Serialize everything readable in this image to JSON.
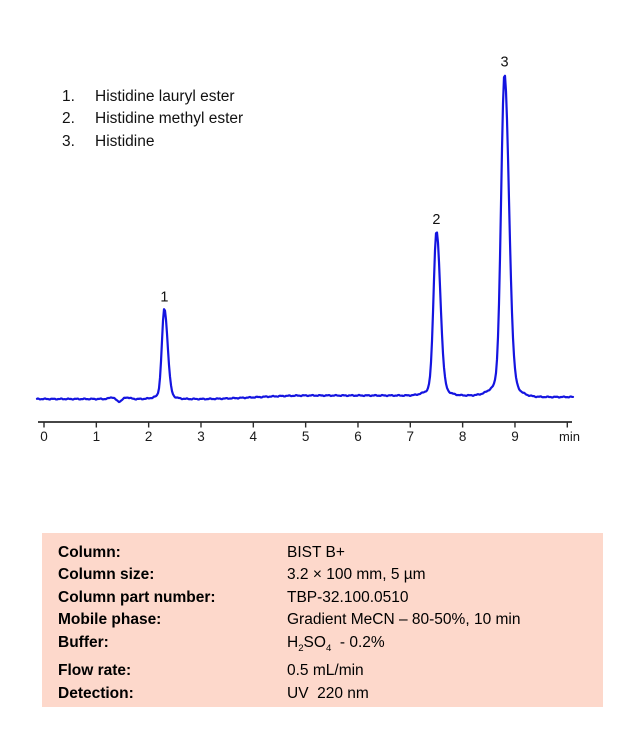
{
  "legend": {
    "items": [
      {
        "number": "1.",
        "label": "Histidine lauryl ester"
      },
      {
        "number": "2.",
        "label": "Histidine methyl ester"
      },
      {
        "number": "3.",
        "label": "Histidine"
      }
    ]
  },
  "chart_data": {
    "type": "line",
    "description": "HPLC chromatogram, UV detector signal vs time",
    "x_axis": {
      "label": "min",
      "tick_labels": [
        "0",
        "1",
        "2",
        "3",
        "4",
        "5",
        "6",
        "7",
        "8",
        "9"
      ],
      "xlim": [
        0,
        10.1
      ],
      "unlabeled_end_tick_at": 10
    },
    "y_axis": {
      "visible": false
    },
    "peaks": [
      {
        "number": "1",
        "compound": "Histidine lauryl ester",
        "retention_time_min": 2.3,
        "relative_height": 0.28,
        "width_sigma_min": 0.055
      },
      {
        "number": "2",
        "compound": "Histidine methyl ester",
        "retention_time_min": 7.5,
        "relative_height": 0.51,
        "width_sigma_min": 0.065
      },
      {
        "number": "3",
        "compound": "Histidine",
        "retention_time_min": 8.8,
        "relative_height": 1.0,
        "width_sigma_min": 0.075
      }
    ],
    "baseline": {
      "noise_blip_min": 1.4,
      "drift": "slight rise between 3.5 and 7 min"
    },
    "trace_color": "#1414e0",
    "axis_color": "#2b2b2b",
    "tick_label_color": "#1a1a1a",
    "peak_label_color": "#111111"
  },
  "params": {
    "background_color": "#fdd8cb",
    "rows": [
      {
        "label": "Column:",
        "value": "BIST B+"
      },
      {
        "label": "Column size:",
        "value": "3.2 × 100 mm, 5 µm"
      },
      {
        "label": "Column part number:",
        "value": "TBP-32.100.0510"
      },
      {
        "label": "Mobile phase:",
        "value": "Gradient MeCN – 80-50%, 10 min"
      },
      {
        "label": "Buffer:",
        "value": "H2SO4 - 0.2%",
        "value_parts": [
          {
            "t": "H"
          },
          {
            "t": "2",
            "sub": true
          },
          {
            "t": "SO"
          },
          {
            "t": "4",
            "sub": true
          },
          {
            "t": "  - 0.2%"
          }
        ]
      },
      {
        "label": "Flow rate:",
        "value": "0.5 mL/min"
      },
      {
        "label": "Detection:",
        "value": "UV  220 nm"
      }
    ]
  }
}
